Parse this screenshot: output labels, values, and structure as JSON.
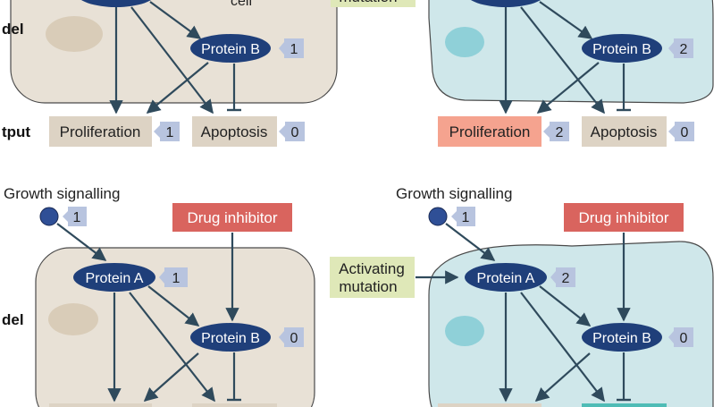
{
  "colors": {
    "normal_cell_fill": "#e8e1d6",
    "normal_cell_nucleus": "#d9ccb8",
    "cancer_cell_fill": "#cfe7ea",
    "cancer_cell_nucleus": "#8fd0d8",
    "protein_fill": "#1f3f7a",
    "badge_fill": "#b8c4df",
    "arrow": "#2f4a5c",
    "output_box": "#ddd3c4",
    "proliferation_cancer": "#f5a38f",
    "apoptosis_cancer_partial": "#4fbcb6",
    "drug_box": "#d9645e",
    "mutation_box": "#dfe8b8",
    "signal_node": "#2f4f96"
  },
  "row_labels": {
    "model_top": "del",
    "output_top": "tput",
    "model_bottom": "del"
  },
  "top": {
    "cell_label": "cell",
    "mutation_label": "mutation",
    "left": {
      "protein_b": {
        "label": "Protein B",
        "value": "1"
      },
      "proliferation": {
        "label": "Proliferation",
        "value": "1"
      },
      "apoptosis": {
        "label": "Apoptosis",
        "value": "0"
      }
    },
    "right": {
      "protein_b": {
        "label": "Protein B",
        "value": "2"
      },
      "proliferation": {
        "label": "Proliferation",
        "value": "2"
      },
      "apoptosis": {
        "label": "Apoptosis",
        "value": "0"
      }
    }
  },
  "bottom": {
    "left": {
      "signal": {
        "label": "Growth signalling",
        "value": "1"
      },
      "drug": "Drug inhibitor",
      "protein_a": {
        "label": "Protein A",
        "value": "1"
      },
      "protein_b": {
        "label": "Protein B",
        "value": "0"
      }
    },
    "right": {
      "signal": {
        "label": "Growth signalling",
        "value": "1"
      },
      "drug": "Drug inhibitor",
      "mutation_line1": "Activating",
      "mutation_line2": "mutation",
      "protein_a": {
        "label": "Protein A",
        "value": "2"
      },
      "protein_b": {
        "label": "Protein B",
        "value": "0"
      }
    }
  }
}
